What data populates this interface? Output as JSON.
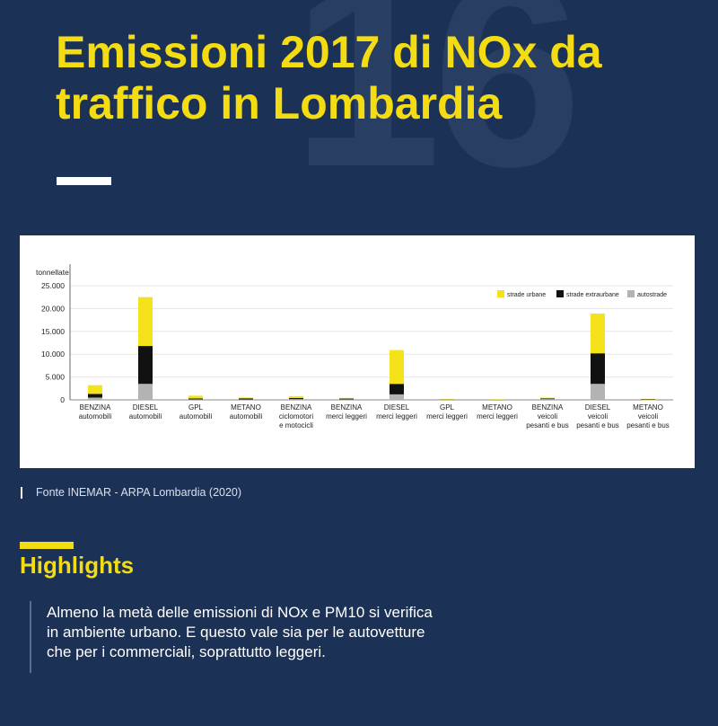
{
  "background_number": "16",
  "title": "Emissioni 2017 di NOx da traffico in Lombardia",
  "source": "Fonte INEMAR - ARPA Lombardia (2020)",
  "highlights": {
    "title": "Highlights",
    "text": "Almeno la metà delle emissioni di NOx e PM10 si verifica in ambiente urbano. E questo vale sia per le autovetture che per i commerciali, soprattutto leggeri."
  },
  "colors": {
    "background": "#1b3155",
    "accent": "#f4dc12",
    "strade_urbane": "#f5e21a",
    "strade_extraurbane": "#111111",
    "autostrade": "#b3b3b3"
  },
  "chart_data": {
    "type": "bar",
    "stacked": true,
    "ylabel": "tonnellate",
    "ylim": [
      0,
      25000
    ],
    "yticks": [
      0,
      5000,
      10000,
      15000,
      20000,
      25000
    ],
    "ytick_labels": [
      "0",
      "5.000",
      "10.000",
      "15.000",
      "20.000",
      "25.000"
    ],
    "legend_position": "top-right",
    "grid": true,
    "categories": [
      [
        "BENZINA",
        "automobili"
      ],
      [
        "DIESEL",
        "automobili"
      ],
      [
        "GPL",
        "automobili"
      ],
      [
        "METANO",
        "automobili"
      ],
      [
        "BENZINA",
        "ciclomotori",
        "e motocicli"
      ],
      [
        "BENZINA",
        "merci leggeri"
      ],
      [
        "DIESEL",
        "merci leggeri"
      ],
      [
        "GPL",
        "merci leggeri"
      ],
      [
        "METANO",
        "merci leggeri"
      ],
      [
        "BENZINA",
        "veicoli",
        "pesanti e bus"
      ],
      [
        "DIESEL",
        "veicoli",
        "pesanti e bus"
      ],
      [
        "METANO",
        "veicoli",
        "pesanti e bus"
      ]
    ],
    "series": [
      {
        "name": "autostrade",
        "values": [
          500,
          3500,
          100,
          80,
          150,
          100,
          1200,
          20,
          20,
          150,
          3500,
          20
        ]
      },
      {
        "name": "strade extraurbane",
        "values": [
          800,
          8300,
          200,
          250,
          250,
          180,
          2300,
          50,
          40,
          150,
          6700,
          80
        ]
      },
      {
        "name": "strade urbane",
        "values": [
          1900,
          10700,
          600,
          180,
          400,
          150,
          7400,
          80,
          60,
          180,
          8700,
          100
        ]
      }
    ]
  }
}
